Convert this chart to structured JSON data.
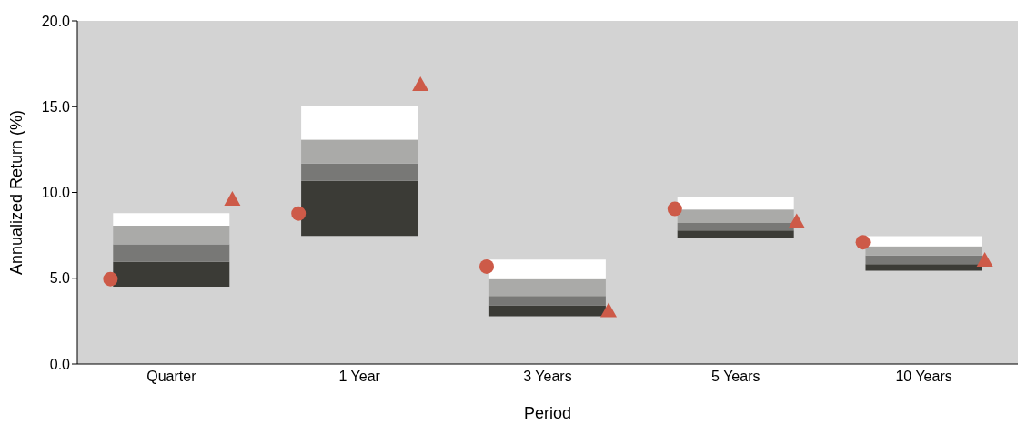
{
  "chart_data": {
    "type": "bar",
    "xlabel": "Period",
    "ylabel": "Annualized Return (%)",
    "categories": [
      "Quarter",
      "1 Year",
      "3 Years",
      "5 Years",
      "10 Years"
    ],
    "series": [
      {
        "color": "#3b3b36",
        "base": [
          4.51,
          7.47,
          2.79,
          7.35,
          5.44
        ],
        "values": [
          1.44,
          3.2,
          0.63,
          0.43,
          0.38
        ]
      },
      {
        "color": "#787876",
        "base": [
          5.95,
          10.67,
          3.42,
          7.78,
          5.82
        ],
        "values": [
          1.02,
          1.02,
          0.55,
          0.44,
          0.51
        ]
      },
      {
        "color": "#aaaaa8",
        "base": [
          6.97,
          11.69,
          3.97,
          8.22,
          6.33
        ],
        "values": [
          1.09,
          1.39,
          0.98,
          0.78,
          0.53
        ]
      },
      {
        "color": "#ffffff",
        "base": [
          8.06,
          13.08,
          4.95,
          9.0,
          6.86
        ],
        "values": [
          0.73,
          1.93,
          1.14,
          0.73,
          0.59
        ]
      },
      {
        "type": "scatter",
        "marker": "circle",
        "color": "#cd5a48",
        "x": [
          "Quarter",
          "1 Year",
          "3 Years",
          "5 Years",
          "10 Years"
        ],
        "values": [
          4.95,
          8.77,
          5.68,
          9.04,
          7.1
        ]
      },
      {
        "type": "scatter",
        "marker": "triangle",
        "color": "#cd5a48",
        "x": [
          "Quarter",
          "1 Year",
          "3 Years",
          "5 Years",
          "10 Years"
        ],
        "values": [
          9.6,
          16.28,
          3.1,
          8.3,
          6.05
        ]
      }
    ],
    "ylim": [
      0,
      20
    ],
    "yticks": [
      {
        "value": 0,
        "label": "0.0"
      },
      {
        "value": 5,
        "label": "5.0"
      },
      {
        "value": 10,
        "label": "10.0"
      },
      {
        "value": 15,
        "label": "15.0"
      },
      {
        "value": 20,
        "label": "20.0"
      }
    ],
    "grid": false,
    "legend": false
  }
}
